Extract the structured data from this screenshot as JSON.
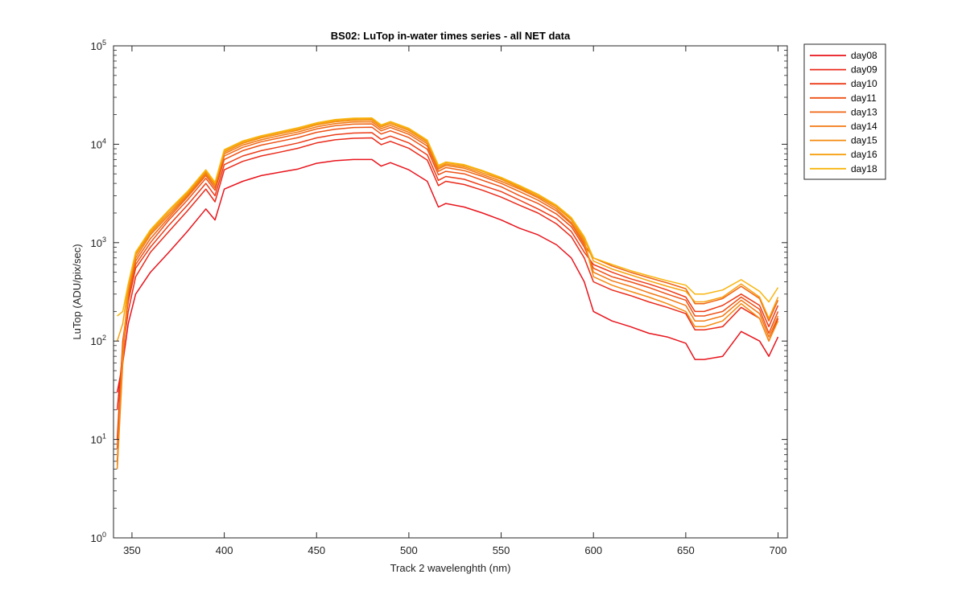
{
  "chart_data": {
    "type": "line",
    "title": "BS02: LuTop in-water times series - all NET data",
    "xlabel": "Track 2 wavelenghth (nm)",
    "ylabel": "LuTop (ADU/pix/sec)",
    "xlim": [
      340,
      705
    ],
    "ylim": [
      1,
      100000
    ],
    "yscale": "log",
    "x_ticks": [
      350,
      400,
      450,
      500,
      550,
      600,
      650,
      700
    ],
    "y_ticks": [
      1,
      10,
      100,
      1000,
      10000,
      100000
    ],
    "y_tick_mantissa": "10",
    "y_tick_exponents": [
      "0",
      "1",
      "2",
      "3",
      "4",
      "5"
    ],
    "legend_position": "outside-top-right",
    "colors": [
      "#e8141c",
      "#ea2a1a",
      "#ec3c18",
      "#ee5016",
      "#f06414",
      "#f27812",
      "#f48c10",
      "#f6a00e",
      "#f8b40c"
    ],
    "x": [
      342,
      345,
      348,
      352,
      360,
      370,
      380,
      390,
      395,
      400,
      410,
      420,
      430,
      440,
      450,
      460,
      470,
      480,
      485,
      490,
      500,
      510,
      516,
      520,
      530,
      540,
      550,
      560,
      570,
      580,
      588,
      595,
      600,
      610,
      620,
      630,
      640,
      650,
      655,
      660,
      670,
      680,
      690,
      695,
      700
    ],
    "series": [
      {
        "name": "day08",
        "values": [
          30,
          60,
          150,
          300,
          500,
          800,
          1300,
          2200,
          1700,
          3500,
          4200,
          4800,
          5200,
          5600,
          6400,
          6800,
          7000,
          7000,
          6000,
          6500,
          5500,
          4200,
          2300,
          2500,
          2300,
          2000,
          1700,
          1400,
          1200,
          950,
          700,
          400,
          200,
          160,
          140,
          120,
          110,
          95,
          65,
          65,
          70,
          125,
          100,
          70,
          110
        ]
      },
      {
        "name": "day09",
        "values": [
          20,
          80,
          200,
          450,
          800,
          1300,
          2100,
          3500,
          2600,
          5500,
          6700,
          7600,
          8300,
          9100,
          10300,
          11100,
          11500,
          11600,
          9900,
          10700,
          9100,
          6900,
          3800,
          4200,
          3900,
          3400,
          2900,
          2400,
          2000,
          1550,
          1150,
          700,
          400,
          330,
          290,
          250,
          220,
          190,
          130,
          130,
          140,
          220,
          170,
          100,
          170
        ]
      },
      {
        "name": "day10",
        "values": [
          10,
          100,
          250,
          550,
          900,
          1500,
          2400,
          4000,
          3000,
          6200,
          7600,
          8600,
          9400,
          10300,
          11600,
          12500,
          13000,
          13100,
          11200,
          12100,
          10300,
          7800,
          4300,
          4700,
          4400,
          3800,
          3300,
          2700,
          2200,
          1750,
          1300,
          800,
          600,
          500,
          430,
          380,
          330,
          280,
          200,
          200,
          230,
          300,
          230,
          140,
          230
        ]
      },
      {
        "name": "day11",
        "values": [
          8,
          90,
          280,
          600,
          1000,
          1700,
          2700,
          4500,
          3400,
          7000,
          8600,
          9800,
          10700,
          11700,
          13200,
          14200,
          14800,
          14900,
          12700,
          13700,
          11700,
          8900,
          4900,
          5300,
          5000,
          4300,
          3700,
          3000,
          2500,
          1950,
          1450,
          900,
          550,
          450,
          400,
          350,
          300,
          260,
          180,
          180,
          200,
          280,
          210,
          120,
          200
        ]
      },
      {
        "name": "day13",
        "values": [
          6,
          70,
          300,
          650,
          1100,
          1800,
          2900,
          4800,
          3600,
          7600,
          9300,
          10600,
          11600,
          12700,
          14300,
          15400,
          16000,
          16100,
          13700,
          14800,
          12600,
          9600,
          5300,
          5800,
          5400,
          4700,
          4000,
          3300,
          2700,
          2100,
          1550,
          950,
          700,
          580,
          500,
          440,
          390,
          340,
          240,
          240,
          270,
          360,
          270,
          160,
          260
        ]
      },
      {
        "name": "day14",
        "values": [
          5,
          60,
          320,
          700,
          1200,
          1900,
          3000,
          5000,
          3800,
          8000,
          9800,
          11100,
          12200,
          13300,
          15000,
          16200,
          16800,
          16900,
          14400,
          15500,
          13200,
          10100,
          5600,
          6100,
          5700,
          4900,
          4200,
          3500,
          2850,
          2200,
          1600,
          1000,
          500,
          410,
          360,
          310,
          270,
          230,
          160,
          160,
          180,
          260,
          190,
          110,
          180
        ]
      },
      {
        "name": "day15",
        "values": [
          5,
          80,
          340,
          750,
          1250,
          2000,
          3100,
          5200,
          3900,
          8300,
          10200,
          11600,
          12700,
          13900,
          15700,
          16900,
          17500,
          17600,
          15000,
          16200,
          13800,
          10500,
          5800,
          6300,
          5900,
          5100,
          4400,
          3600,
          2950,
          2300,
          1700,
          1050,
          450,
          370,
          320,
          280,
          240,
          200,
          140,
          140,
          160,
          240,
          170,
          100,
          160
        ]
      },
      {
        "name": "day16",
        "values": [
          100,
          150,
          360,
          780,
          1300,
          2100,
          3200,
          5400,
          4000,
          8600,
          10500,
          11900,
          13100,
          14300,
          16100,
          17400,
          18000,
          18100,
          15400,
          16700,
          14200,
          10800,
          6000,
          6500,
          6100,
          5300,
          4500,
          3700,
          3050,
          2350,
          1750,
          1100,
          650,
          540,
          470,
          410,
          360,
          320,
          250,
          250,
          280,
          380,
          280,
          170,
          280
        ]
      },
      {
        "name": "day18",
        "values": [
          180,
          200,
          380,
          800,
          1350,
          2150,
          3300,
          5500,
          4100,
          8800,
          10800,
          12200,
          13400,
          14700,
          16500,
          17800,
          18400,
          18500,
          15700,
          17000,
          14500,
          11000,
          6100,
          6600,
          6200,
          5400,
          4600,
          3800,
          3100,
          2400,
          1800,
          1150,
          700,
          600,
          520,
          460,
          410,
          370,
          300,
          300,
          330,
          420,
          320,
          250,
          350
        ]
      }
    ]
  }
}
